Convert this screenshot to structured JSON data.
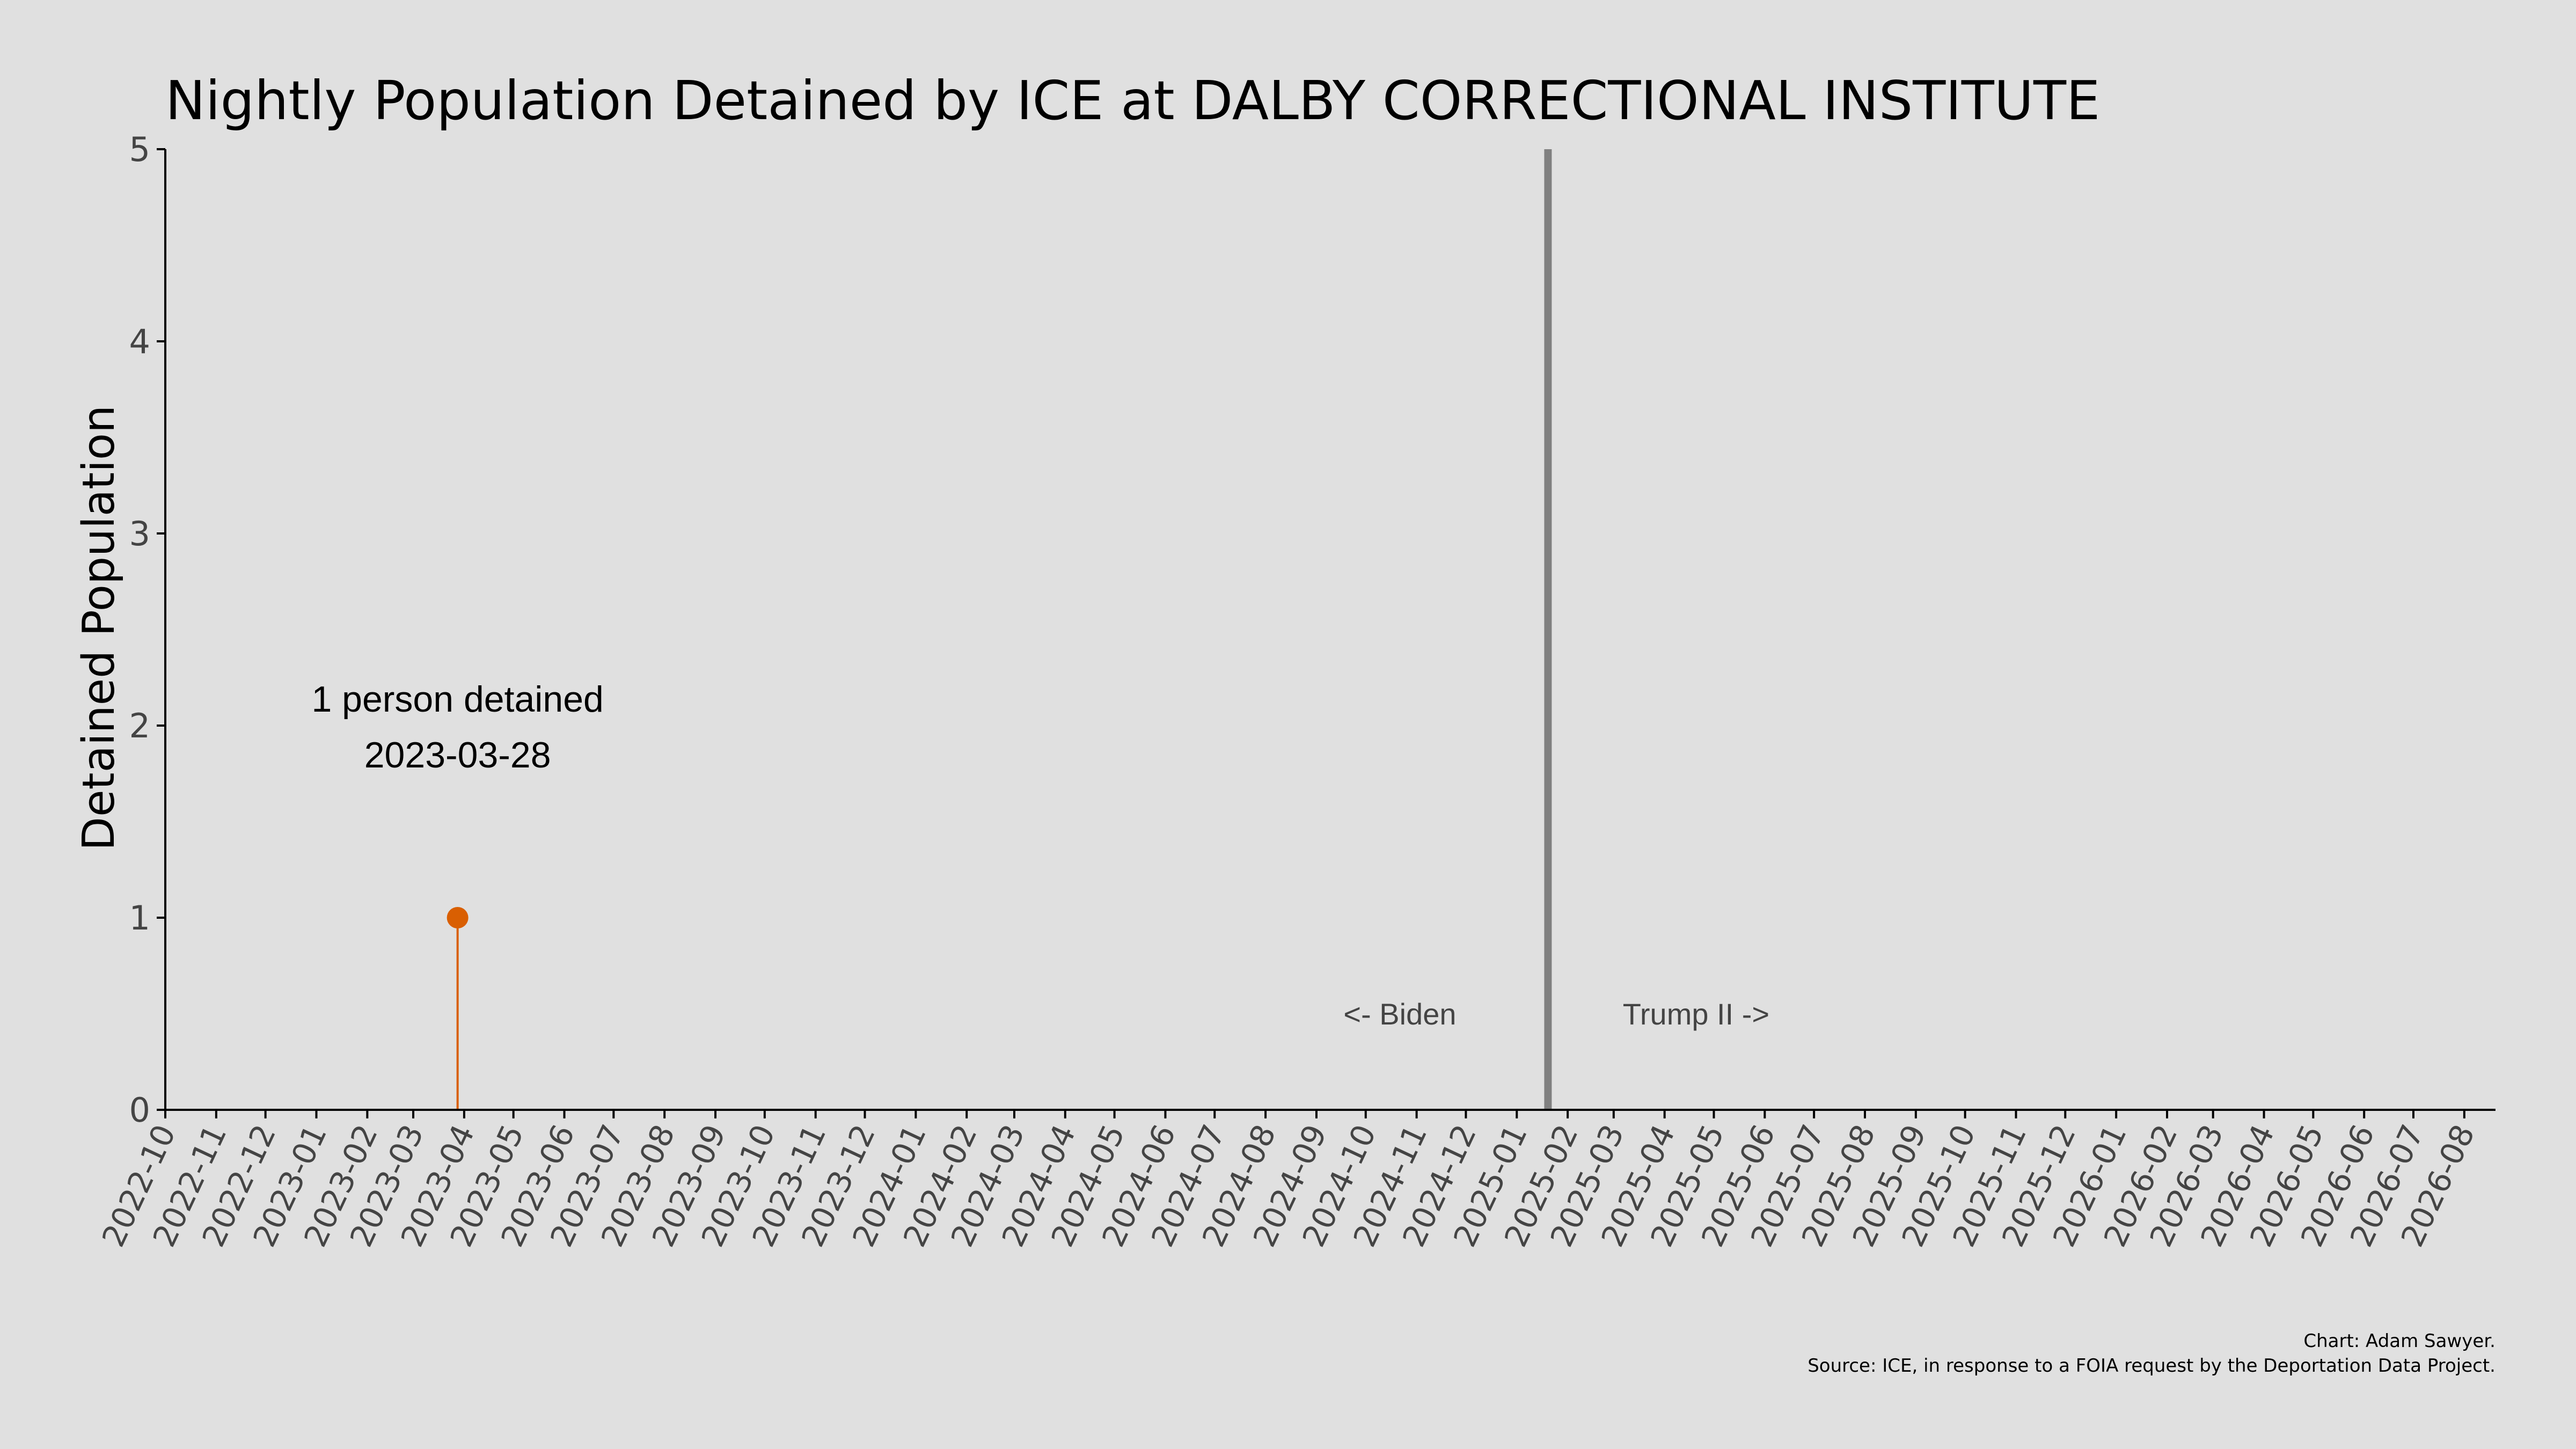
{
  "chart_data": {
    "type": "line",
    "title": "Nightly Population Detained by ICE at DALBY CORRECTIONAL INSTITUTE",
    "xlabel": "",
    "ylabel": "Detained Population",
    "ylim": [
      0,
      5
    ],
    "yticks": [
      0,
      1,
      2,
      3,
      4,
      5
    ],
    "xlim": [
      "2022-10-01",
      "2026-08-20"
    ],
    "xticks": [
      "2022-10",
      "2022-11",
      "2022-12",
      "2023-01",
      "2023-02",
      "2023-03",
      "2023-04",
      "2023-05",
      "2023-06",
      "2023-07",
      "2023-08",
      "2023-09",
      "2023-10",
      "2023-11",
      "2023-12",
      "2024-01",
      "2024-02",
      "2024-03",
      "2024-04",
      "2024-05",
      "2024-06",
      "2024-07",
      "2024-08",
      "2024-09",
      "2024-10",
      "2024-11",
      "2024-12",
      "2025-01",
      "2025-02",
      "2025-03",
      "2025-04",
      "2025-05",
      "2025-06",
      "2025-07",
      "2025-08",
      "2025-09",
      "2025-10",
      "2025-11",
      "2025-12",
      "2026-01",
      "2026-02",
      "2026-03",
      "2026-04",
      "2026-05",
      "2026-06",
      "2026-07",
      "2026-08"
    ],
    "grid": false,
    "series": [
      {
        "color": "#d95f02",
        "points": [
          {
            "x": "2023-03-28",
            "y": 1
          }
        ]
      }
    ],
    "annotations": {
      "peak_line1": "1 person detained",
      "peak_line2": "2023-03-28",
      "divider_date": "2025-01-20",
      "divider_color": "#808080",
      "left_era": "<- Biden",
      "right_era": "Trump II ->"
    },
    "credits": {
      "line1": "Chart: Adam Sawyer.",
      "line2": "Source: ICE, in response to a FOIA request by the Deportation Data Project."
    }
  }
}
